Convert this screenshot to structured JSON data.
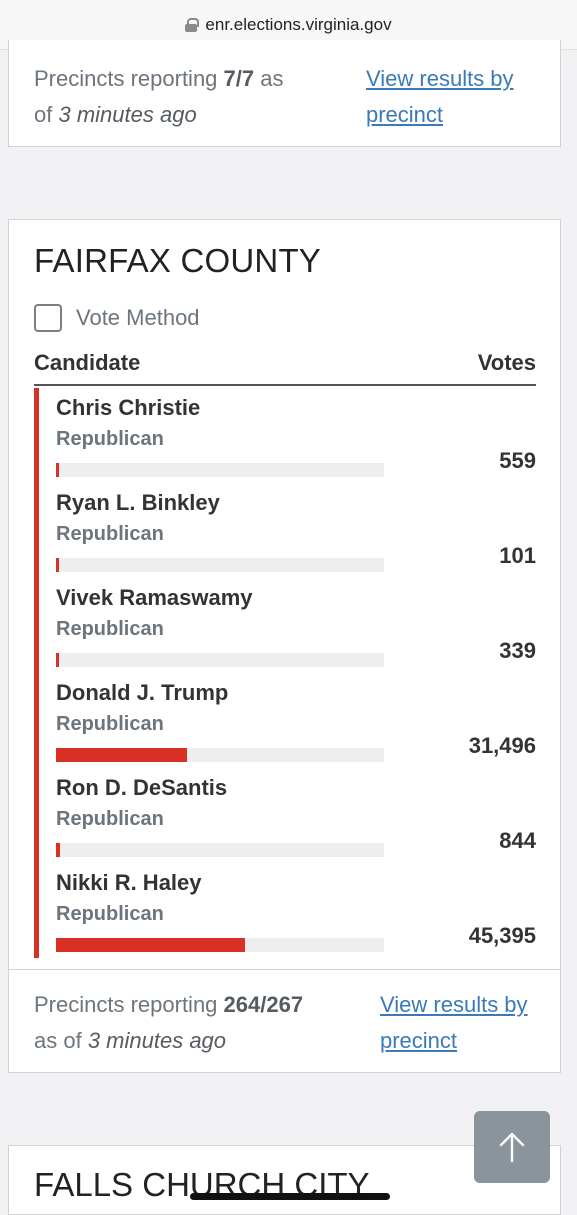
{
  "browser": {
    "url": "enr.elections.virginia.gov"
  },
  "prev_card": {
    "reporting_prefix": "Precincts reporting",
    "reporting_count": "7/7",
    "reporting_as": "as",
    "reporting_of": "of",
    "reporting_time": "3 minutes ago",
    "view_link_line1": "View results by",
    "view_link_line2": "precinct"
  },
  "county": {
    "title": "FAIRFAX COUNTY",
    "vote_method_label": "Vote Method",
    "col_candidate": "Candidate",
    "col_votes": "Votes",
    "candidates": [
      {
        "name": "Chris Christie",
        "party": "Republican",
        "votes": "559",
        "share": 0.007
      },
      {
        "name": "Ryan L. Binkley",
        "party": "Republican",
        "votes": "101",
        "share": 0.001
      },
      {
        "name": "Vivek Ramaswamy",
        "party": "Republican",
        "votes": "339",
        "share": 0.004
      },
      {
        "name": "Donald J. Trump",
        "party": "Republican",
        "votes": "31,496",
        "share": 0.4
      },
      {
        "name": "Ron D. DeSantis",
        "party": "Republican",
        "votes": "844",
        "share": 0.011
      },
      {
        "name": "Nikki R. Haley",
        "party": "Republican",
        "votes": "45,395",
        "share": 0.577
      }
    ],
    "reporting_prefix": "Precincts reporting",
    "reporting_count": "264/267",
    "reporting_line2": "as of",
    "reporting_time": "3 minutes ago",
    "view_link_line1": "View results by",
    "view_link_line2": "precinct"
  },
  "next_card": {
    "title": "FALLS CHURCH CITY"
  },
  "colors": {
    "accent": "#d93025",
    "link": "#3a7ab8"
  }
}
